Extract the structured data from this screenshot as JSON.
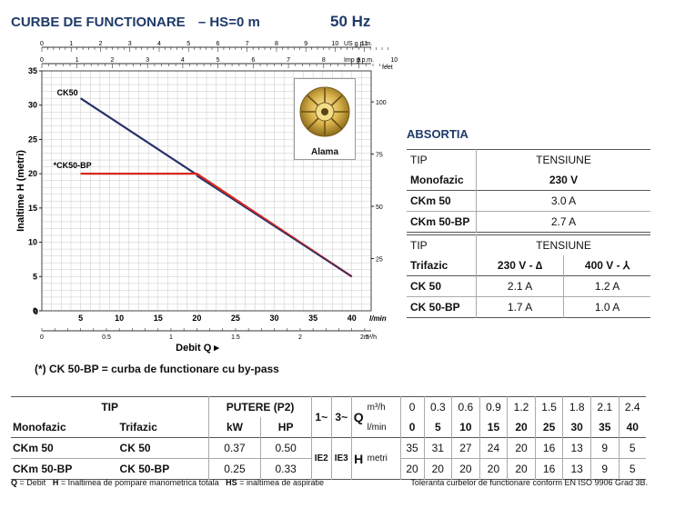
{
  "header": {
    "title": "CURBE DE FUNCTIONARE",
    "subtitle": "–  HS=0 m",
    "freq": "50 Hz"
  },
  "chart_data": {
    "type": "line",
    "top_axes": [
      {
        "unit": "US g.p.m.",
        "ticks": [
          "0",
          "1",
          "2",
          "3",
          "4",
          "5",
          "6",
          "7",
          "8",
          "9",
          "10",
          "11"
        ],
        "max": 11.8
      },
      {
        "unit": "Imp g.p.m.",
        "ticks": [
          "0",
          "1",
          "2",
          "3",
          "4",
          "5",
          "6",
          "7",
          "8",
          "9",
          "10"
        ],
        "max": 9.8
      }
    ],
    "xlabel": "Debit Q",
    "xunit": "l/min",
    "x_ticks": [
      "5",
      "10",
      "15",
      "20",
      "25",
      "30",
      "35",
      "40"
    ],
    "x2_unit": "m³/h",
    "x2_ticks": [
      "0",
      "0.5",
      "1",
      "1.5",
      "2",
      "2.5"
    ],
    "ylabel": "Inaltime  H  (metri)",
    "y_ticks": [
      "0",
      "5",
      "10",
      "15",
      "20",
      "25",
      "30",
      "35"
    ],
    "yr_unit": "feet",
    "yr_ticks": [
      "25",
      "50",
      "75",
      "100"
    ],
    "xlim": [
      0,
      42.5
    ],
    "ylim": [
      0,
      35
    ],
    "grid": true,
    "series": [
      {
        "name": "CK50",
        "color": "#27306a",
        "x": [
          5,
          40
        ],
        "y": [
          31,
          5
        ]
      },
      {
        "name": "*CK50-BP",
        "color": "#d9281c",
        "x": [
          5,
          20,
          40
        ],
        "y": [
          20,
          20,
          5
        ]
      }
    ]
  },
  "image_label": "Alama",
  "footnote": "(*) CK 50-BP = curba de functionare cu by-pass",
  "absortia": {
    "title": "ABSORTIA",
    "mono": {
      "tip": "TIP",
      "tensiune": "TENSIUNE",
      "col": "Monofazic",
      "volt": "230 V",
      "rows": [
        {
          "name": "CKm 50",
          "v": "3.0 A"
        },
        {
          "name": "CKm 50-BP",
          "v": "2.7 A"
        }
      ]
    },
    "tri": {
      "tip": "TIP",
      "tensiune": "TENSIUNE",
      "col": "Trifazic",
      "v1": "230 V - ∆",
      "v2": "400 V - ⅄",
      "rows": [
        {
          "name": "CK 50",
          "a": "2.1 A",
          "b": "1.2 A"
        },
        {
          "name": "CK 50-BP",
          "a": "1.7 A",
          "b": "1.0 A"
        }
      ]
    }
  },
  "table": {
    "tip": "TIP",
    "putere": "PUTERE (P2)",
    "mono": "Monofazic",
    "tri": "Trifazic",
    "kw": "kW",
    "hp": "HP",
    "p1": "1~",
    "p3": "3~",
    "q": "Q",
    "unit_m3h": "m³/h",
    "unit_lmin": "l/min",
    "h": "H",
    "hunit": "metri",
    "m3h": [
      "0",
      "0.3",
      "0.6",
      "0.9",
      "1.2",
      "1.5",
      "1.8",
      "2.1",
      "2.4"
    ],
    "lmin": [
      "0",
      "5",
      "10",
      "15",
      "20",
      "25",
      "30",
      "35",
      "40"
    ],
    "rows": [
      {
        "mono": "CKm 50",
        "tri": "CK 50",
        "kw": "0.37",
        "hp": "0.50",
        "h": [
          "35",
          "31",
          "27",
          "24",
          "20",
          "16",
          "13",
          "9",
          "5"
        ]
      },
      {
        "mono": "CKm 50-BP",
        "tri": "CK 50-BP",
        "kw": "0.25",
        "hp": "0.33",
        "h": [
          "20",
          "20",
          "20",
          "20",
          "20",
          "16",
          "13",
          "9",
          "5"
        ]
      }
    ],
    "ie2": "IE2",
    "ie3": "IE3"
  },
  "legend": {
    "q": "Q",
    "q_desc": " = Debit",
    "h": "H",
    "h_desc": " = Inaltimea de pompare manometrica totala",
    "hs": "HS",
    "hs_desc": " = inaltimea de aspiratie",
    "tolerance": "Toleranta curbelor de functionare conform EN ISO 9906 Grad 3B."
  }
}
